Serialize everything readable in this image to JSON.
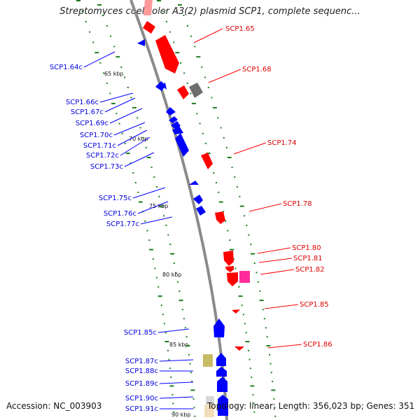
{
  "title": "Streptomyces coelicolor A3(2) plasmid SCP1, complete sequenc...",
  "accession": "Accession: NC_003903",
  "summary": "Topology: linear; Length: 356,023 bp; Genes: 351",
  "colors": {
    "backbone": "#8a8a8a",
    "forward": "#ff0000",
    "reverse": "#0000ff",
    "tick": "#1e7d1e",
    "gray_gene": "#7a7a7a",
    "pink_gene": "#ff2a9a",
    "olive_gene": "#c8bb66"
  },
  "scale_labels": [
    "65 kbp",
    "70 kbp",
    "75 kbp",
    "80 kbp",
    "85 kbp",
    "90 kbp"
  ],
  "labels_left": [
    "SCP1.64c",
    "SCP1.66c",
    "SCP1.67c",
    "SCP1.69c",
    "SCP1.70c",
    "SCP1.71c",
    "SCP1.72c",
    "SCP1.73c",
    "SCP1.75c",
    "SCP1.76c",
    "SCP1.77c",
    "SCP1.85c",
    "SCP1.87c",
    "SCP1.88c",
    "SCP1.89c",
    "SCP1.90c",
    "SCP1.91c"
  ],
  "labels_right": [
    "SCP1.65",
    "SCP1.68",
    "SCP1.74",
    "SCP1.78",
    "SCP1.80",
    "SCP1.81",
    "SCP1.82",
    "SCP1.85",
    "SCP1.86"
  ]
}
